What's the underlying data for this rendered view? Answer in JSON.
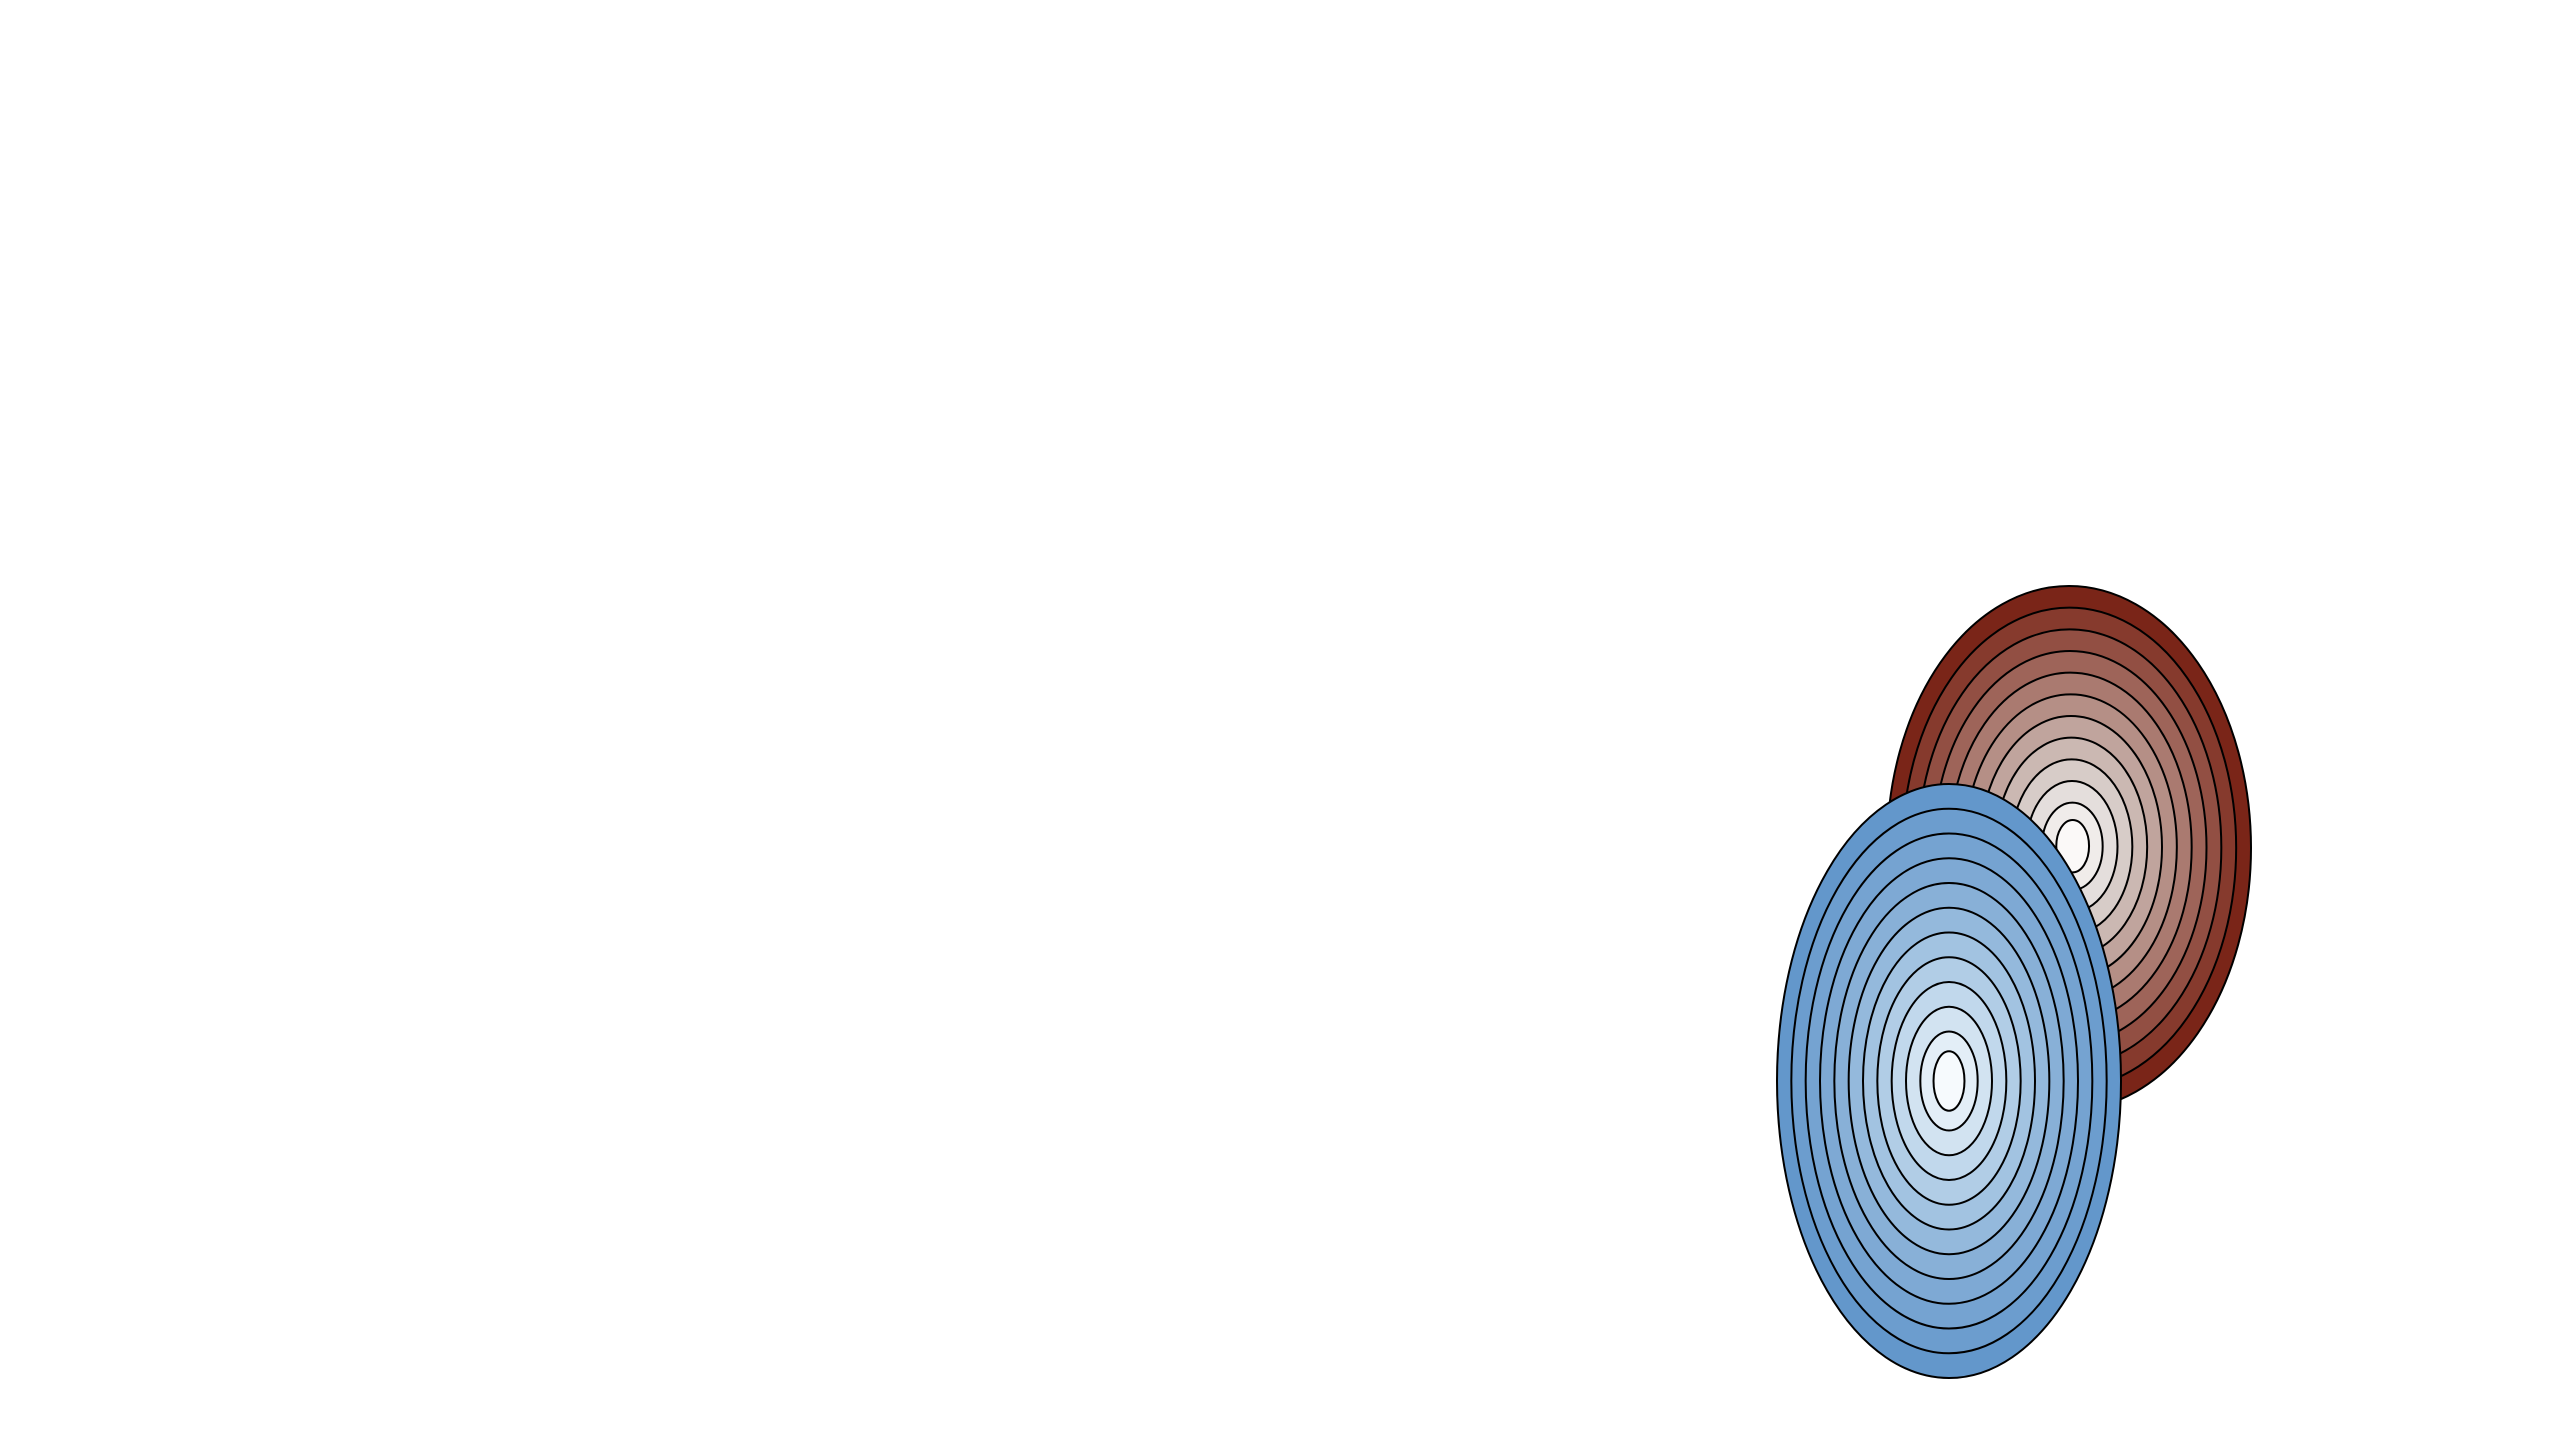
{
  "chart_data": {
    "type": "contour",
    "title": "",
    "xlabel": "",
    "ylabel": "",
    "grid": false,
    "legend": "none",
    "axes_visible": false,
    "series": [
      {
        "kind": "filled-contours",
        "colormap": "reds",
        "level_count": 12,
        "center": [
          2069,
          848
        ],
        "semi_axes_outer": [
          182,
          262
        ],
        "fill_colors": [
          "#7a2518",
          "#863a2d",
          "#924f43",
          "#9e6459",
          "#aa7a70",
          "#b58f86",
          "#c0a49d",
          "#cbb8b2",
          "#d7ccc8",
          "#e4dedc",
          "#f0ecea",
          "#fbf9f8"
        ],
        "line_color": "#000000",
        "marker_color": "#5fa53a"
      },
      {
        "kind": "filled-contours",
        "colormap": "blues",
        "level_count": 12,
        "center": [
          1949,
          1081
        ],
        "semi_axes_outer": [
          172,
          297
        ],
        "fill_colors": [
          "#6397cb",
          "#6c9dce",
          "#75a3d1",
          "#7ea9d4",
          "#88b0d7",
          "#94b9dc",
          "#a2c3e1",
          "#b1cde6",
          "#c1d8ec",
          "#d2e3f1",
          "#e3eef7",
          "#f6fafd"
        ],
        "line_color": "#000000"
      }
    ]
  }
}
